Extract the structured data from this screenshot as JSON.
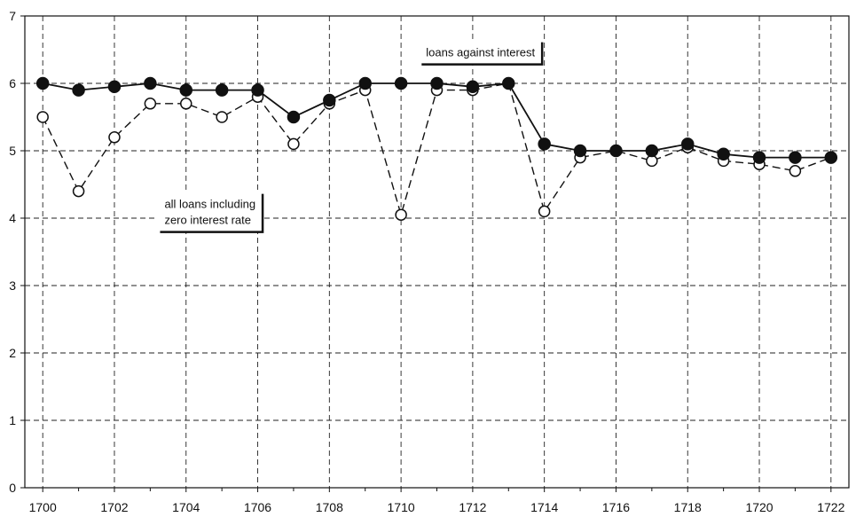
{
  "chart_data": {
    "type": "line",
    "title": "",
    "xlabel": "",
    "ylabel": "",
    "xlim": [
      1699.5,
      1722.5
    ],
    "ylim": [
      0,
      7
    ],
    "grid": true,
    "x_ticks": [
      1700,
      1702,
      1704,
      1706,
      1708,
      1710,
      1712,
      1714,
      1716,
      1718,
      1720,
      1722
    ],
    "y_ticks": [
      0,
      1,
      2,
      3,
      4,
      5,
      6,
      7
    ],
    "x": [
      1700,
      1701,
      1702,
      1703,
      1704,
      1705,
      1706,
      1707,
      1708,
      1709,
      1710,
      1711,
      1712,
      1713,
      1714,
      1715,
      1716,
      1717,
      1718,
      1719,
      1720,
      1721,
      1722
    ],
    "series": [
      {
        "name": "loans against interest",
        "marker": "filled-circle",
        "line_style": "solid",
        "color": "#111111",
        "values": [
          6.0,
          5.9,
          5.95,
          6.0,
          5.9,
          5.9,
          5.9,
          5.5,
          5.75,
          6.0,
          6.0,
          6.0,
          5.95,
          6.0,
          5.1,
          5.0,
          5.0,
          5.0,
          5.1,
          4.95,
          4.9,
          4.9,
          4.9
        ]
      },
      {
        "name": "all loans including zero interest rate",
        "marker": "open-circle",
        "line_style": "dashed",
        "color": "#111111",
        "values": [
          5.5,
          4.4,
          5.2,
          5.7,
          5.7,
          5.5,
          5.8,
          5.1,
          5.7,
          5.9,
          4.05,
          5.9,
          5.9,
          6.0,
          4.1,
          4.9,
          5.0,
          4.85,
          5.05,
          4.85,
          4.8,
          4.7,
          4.9
        ]
      }
    ],
    "annotations": [
      {
        "text_lines": [
          "loans against interest"
        ],
        "series": 0,
        "anchor": [
          1710.5,
          6.65
        ]
      },
      {
        "text_lines": [
          "all loans including",
          "zero interest rate"
        ],
        "series": 1,
        "anchor": [
          1703.2,
          4.4
        ]
      }
    ]
  }
}
